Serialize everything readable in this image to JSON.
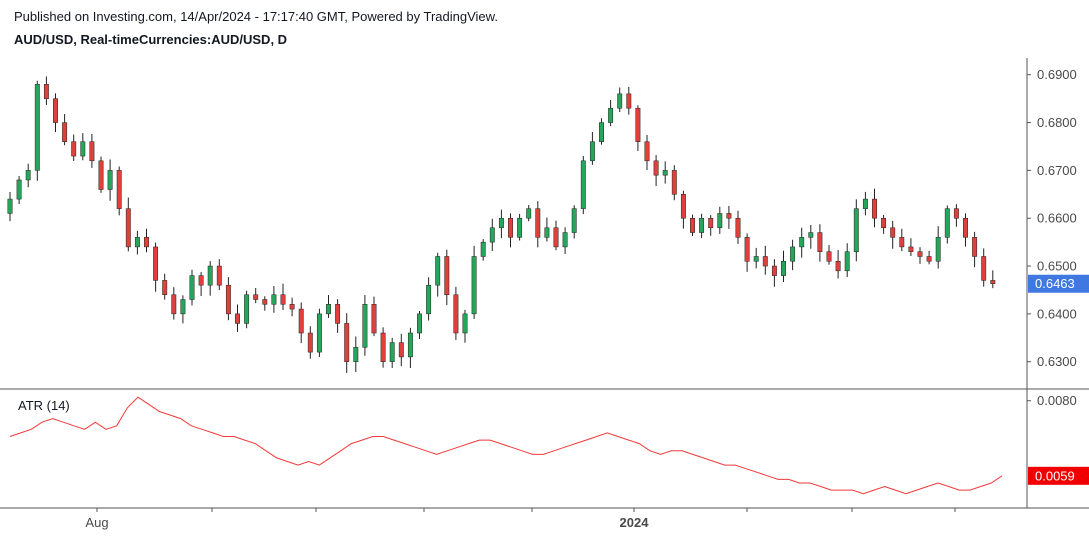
{
  "header": {
    "published": "Published on Investing.com, 14/Apr/2024 - 17:17:40 GMT, Powered by TradingView.",
    "symbol": "AUD/USD, Real-timeCurrencies:AUD/USD, D"
  },
  "colors": {
    "up": "#26a65b",
    "down": "#e0403b",
    "wick": "#222222",
    "atr_line": "#f23a3a",
    "price_tag": "#3f78e0",
    "atr_tag": "#f00000",
    "axis": "#555555"
  },
  "chart_data": [
    {
      "type": "candlestick",
      "title": "AUD/USD, Real-timeCurrencies:AUD/USD, D",
      "x_labels": [
        "Aug",
        "2024"
      ],
      "y_ticks": [
        "0.6900",
        "0.6800",
        "0.6700",
        "0.6600",
        "0.6500",
        "0.6400",
        "0.6300"
      ],
      "ylim": [
        0.6245,
        0.6935
      ],
      "last_value": "0.6463",
      "grid": false,
      "notes": "Daily candles approx. mid-Jul 2023 to mid-Apr 2024",
      "closes": [
        0.664,
        0.668,
        0.67,
        0.688,
        0.685,
        0.68,
        0.676,
        0.673,
        0.676,
        0.672,
        0.666,
        0.67,
        0.662,
        0.654,
        0.656,
        0.654,
        0.647,
        0.644,
        0.64,
        0.643,
        0.648,
        0.646,
        0.65,
        0.646,
        0.64,
        0.638,
        0.644,
        0.643,
        0.642,
        0.644,
        0.642,
        0.641,
        0.636,
        0.632,
        0.64,
        0.642,
        0.638,
        0.63,
        0.633,
        0.642,
        0.636,
        0.63,
        0.634,
        0.631,
        0.636,
        0.64,
        0.646,
        0.652,
        0.644,
        0.636,
        0.64,
        0.652,
        0.655,
        0.658,
        0.66,
        0.656,
        0.66,
        0.662,
        0.656,
        0.658,
        0.654,
        0.657,
        0.662,
        0.672,
        0.676,
        0.68,
        0.683,
        0.686,
        0.683,
        0.676,
        0.672,
        0.669,
        0.67,
        0.665,
        0.66,
        0.657,
        0.66,
        0.658,
        0.661,
        0.66,
        0.656,
        0.651,
        0.652,
        0.65,
        0.648,
        0.651,
        0.654,
        0.656,
        0.657,
        0.653,
        0.651,
        0.649,
        0.653,
        0.662,
        0.664,
        0.66,
        0.658,
        0.656,
        0.654,
        0.653,
        0.652,
        0.651,
        0.656,
        0.662,
        0.66,
        0.656,
        0.652,
        0.647,
        0.6463
      ],
      "atr": {
        "title": "ATR (14)",
        "y_ticks": [
          "0.0080"
        ],
        "ylim": [
          0.005,
          0.0083
        ],
        "last_value": "0.0059",
        "values": [
          0.007,
          0.0071,
          0.0072,
          0.0074,
          0.0075,
          0.0074,
          0.0073,
          0.0072,
          0.0074,
          0.0072,
          0.0073,
          0.0078,
          0.0081,
          0.0079,
          0.0077,
          0.0076,
          0.0075,
          0.0073,
          0.0072,
          0.0071,
          0.007,
          0.007,
          0.0069,
          0.0068,
          0.0066,
          0.0064,
          0.0063,
          0.0062,
          0.0063,
          0.0062,
          0.0064,
          0.0066,
          0.0068,
          0.0069,
          0.007,
          0.007,
          0.0069,
          0.0068,
          0.0067,
          0.0066,
          0.0065,
          0.0066,
          0.0067,
          0.0068,
          0.0069,
          0.0069,
          0.0068,
          0.0067,
          0.0066,
          0.0065,
          0.0065,
          0.0066,
          0.0067,
          0.0068,
          0.0069,
          0.007,
          0.0071,
          0.007,
          0.0069,
          0.0068,
          0.0066,
          0.0065,
          0.0066,
          0.0066,
          0.0065,
          0.0064,
          0.0063,
          0.0062,
          0.0062,
          0.0061,
          0.006,
          0.0059,
          0.0058,
          0.0058,
          0.0057,
          0.0057,
          0.0056,
          0.0055,
          0.0055,
          0.0055,
          0.0054,
          0.0055,
          0.0056,
          0.0055,
          0.0054,
          0.0055,
          0.0056,
          0.0057,
          0.0056,
          0.0055,
          0.0055,
          0.0056,
          0.0057,
          0.0059
        ]
      }
    }
  ]
}
